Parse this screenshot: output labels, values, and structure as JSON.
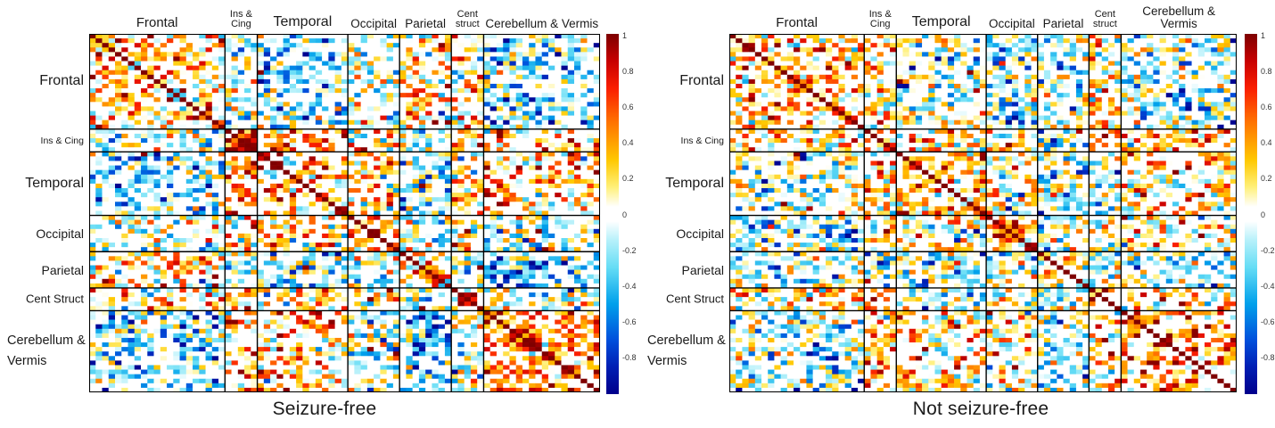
{
  "figure": {
    "background": "#ffffff",
    "description": "Two group-structured brain connectivity heatmaps comparing seizure outcomes"
  },
  "colormap": [
    {
      "v": 1.0,
      "c": "#7f0000"
    },
    {
      "v": 0.85,
      "c": "#c80000"
    },
    {
      "v": 0.7,
      "c": "#fa1e00"
    },
    {
      "v": 0.5,
      "c": "#ff7800"
    },
    {
      "v": 0.3,
      "c": "#ffc800"
    },
    {
      "v": 0.15,
      "c": "#fff078"
    },
    {
      "v": 0.04,
      "c": "#ffffff"
    },
    {
      "v": -0.04,
      "c": "#ffffff"
    },
    {
      "v": -0.15,
      "c": "#b4f0fa"
    },
    {
      "v": -0.3,
      "c": "#64dcf5"
    },
    {
      "v": -0.5,
      "c": "#00a0eb"
    },
    {
      "v": -0.7,
      "c": "#0050dc"
    },
    {
      "v": -0.85,
      "c": "#001eb4"
    },
    {
      "v": -1.0,
      "c": "#00008c"
    }
  ],
  "chart_data": [
    {
      "type": "heatmap",
      "title": "Seizure-free",
      "matrix_size": 79,
      "row_groups": [
        {
          "label": "Frontal",
          "count": 21
        },
        {
          "label": "Ins & Cing",
          "count": 5,
          "small": true
        },
        {
          "label": "Temporal",
          "count": 14
        },
        {
          "label": "Occipital",
          "count": 8
        },
        {
          "label": "Parietal",
          "count": 8
        },
        {
          "label": "Cent Struct",
          "count": 5,
          "small": true
        },
        {
          "label": "Cerebellum & Vermis",
          "count": 18,
          "two_line": true
        }
      ],
      "col_groups": [
        {
          "label": "Frontal",
          "count": 21
        },
        {
          "label": "Ins &\nCing",
          "count": 5,
          "small": true
        },
        {
          "label": "Temporal",
          "count": 14
        },
        {
          "label": "Occipital",
          "count": 8
        },
        {
          "label": "Parietal",
          "count": 8
        },
        {
          "label": "Cent\nstruct",
          "count": 5,
          "small": true
        },
        {
          "label": "Cerebellum & Vermis",
          "count": 18
        }
      ],
      "colorbar": {
        "min": -1,
        "max": 1,
        "tick_labels": [
          "1",
          "0.8",
          "0.6",
          "0.4",
          "0.2",
          "0",
          "-0.2",
          "-0.4",
          "-0.6",
          "-0.8"
        ],
        "tick_values": [
          1,
          0.8,
          0.6,
          0.4,
          0.2,
          0,
          -0.2,
          -0.4,
          -0.6,
          -0.8
        ]
      },
      "cell_active_fraction": 0.6,
      "seed": 20,
      "block_bias": [
        [
          0.3,
          -0.15,
          -0.18,
          -0.05,
          0.22,
          0.18,
          -0.28
        ],
        [
          -0.15,
          0.55,
          0.45,
          0.22,
          -0.18,
          0.3,
          0.28
        ],
        [
          -0.18,
          0.45,
          0.38,
          0.18,
          -0.12,
          0.2,
          0.28
        ],
        [
          -0.05,
          0.22,
          0.18,
          0.5,
          0.0,
          0.15,
          -0.08
        ],
        [
          0.22,
          -0.18,
          -0.12,
          0.0,
          0.3,
          -0.08,
          -0.35
        ],
        [
          0.18,
          0.3,
          0.2,
          0.15,
          -0.08,
          0.55,
          0.02
        ],
        [
          -0.28,
          0.28,
          0.28,
          -0.08,
          -0.35,
          0.02,
          0.45
        ]
      ]
    },
    {
      "type": "heatmap",
      "title": "Not seizure-free",
      "matrix_size": 79,
      "row_groups": [
        {
          "label": "Frontal",
          "count": 21
        },
        {
          "label": "Ins & Cing",
          "count": 5,
          "small": true
        },
        {
          "label": "Temporal",
          "count": 14
        },
        {
          "label": "Occipital",
          "count": 8
        },
        {
          "label": "Parietal",
          "count": 8
        },
        {
          "label": "Cent Struct",
          "count": 5,
          "small": true
        },
        {
          "label": "Cerebellum & Vermis",
          "count": 18,
          "two_line": true
        }
      ],
      "col_groups": [
        {
          "label": "Frontal",
          "count": 21
        },
        {
          "label": "Ins &\nCing",
          "count": 5,
          "small": true
        },
        {
          "label": "Temporal",
          "count": 14
        },
        {
          "label": "Occipital",
          "count": 8
        },
        {
          "label": "Parietal",
          "count": 8
        },
        {
          "label": "Cent\nstruct",
          "count": 5,
          "small": true
        },
        {
          "label": "Cerebellum & Vermis",
          "count": 18
        }
      ],
      "colorbar": {
        "min": -1,
        "max": 1,
        "tick_labels": [
          "1",
          "0.8",
          "0.6",
          "0.4",
          "0.2",
          "0",
          "-0.2",
          "-0.4",
          "-0.6",
          "-0.8"
        ],
        "tick_values": [
          1,
          0.8,
          0.6,
          0.4,
          0.2,
          0,
          -0.2,
          -0.4,
          -0.6,
          -0.8
        ]
      },
      "cell_active_fraction": 0.6,
      "seed": 77,
      "block_bias": [
        [
          0.3,
          0.22,
          -0.05,
          -0.2,
          -0.08,
          0.28,
          -0.18
        ],
        [
          0.22,
          0.45,
          0.25,
          0.05,
          -0.05,
          0.28,
          0.2
        ],
        [
          -0.05,
          0.25,
          0.32,
          0.12,
          -0.12,
          -0.05,
          0.22
        ],
        [
          -0.2,
          0.05,
          0.12,
          0.48,
          -0.1,
          0.05,
          0.1
        ],
        [
          -0.08,
          -0.05,
          -0.12,
          -0.1,
          0.15,
          -0.1,
          -0.18
        ],
        [
          0.28,
          0.28,
          -0.05,
          0.05,
          -0.1,
          0.5,
          0.1
        ],
        [
          -0.18,
          0.2,
          0.22,
          0.1,
          -0.18,
          0.1,
          0.4
        ]
      ]
    }
  ]
}
